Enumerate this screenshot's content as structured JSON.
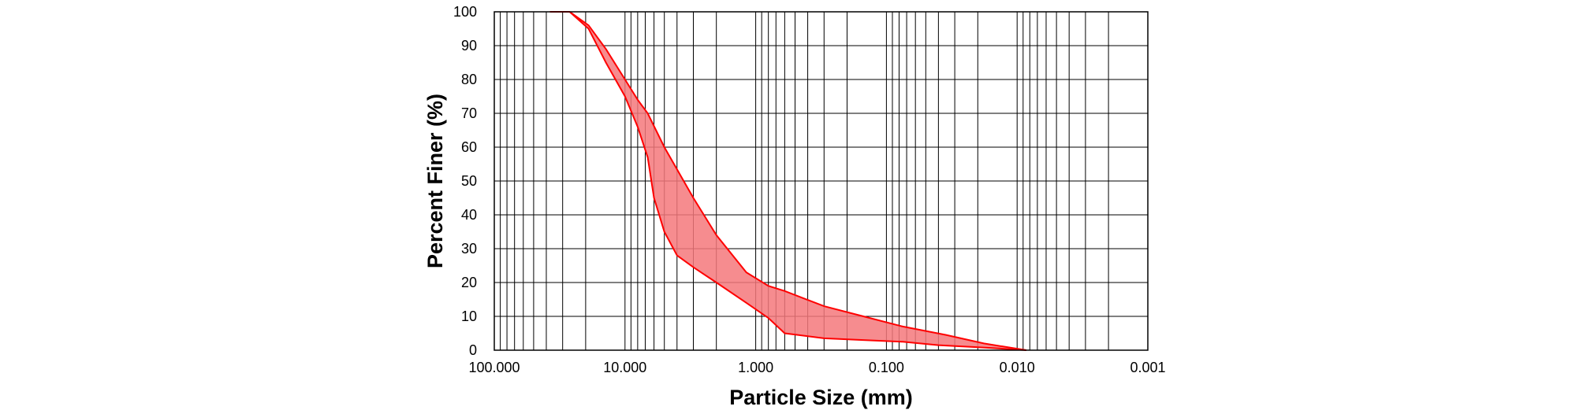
{
  "chart_data": {
    "type": "area",
    "xlabel": "Particle Size (mm)",
    "ylabel": "Percent Finer  (%)",
    "x_scale": "log",
    "x_reversed": true,
    "xlim": [
      100,
      0.001
    ],
    "ylim": [
      0,
      100
    ],
    "x_ticks": [
      {
        "value": 100,
        "label": "100.000"
      },
      {
        "value": 10,
        "label": "10.000"
      },
      {
        "value": 1,
        "label": "1.000"
      },
      {
        "value": 0.1,
        "label": "0.100"
      },
      {
        "value": 0.01,
        "label": "0.010"
      },
      {
        "value": 0.001,
        "label": "0.001"
      }
    ],
    "y_ticks": [
      0,
      10,
      20,
      30,
      40,
      50,
      60,
      70,
      80,
      90,
      100
    ],
    "grid": true,
    "band_color": "#ff0000",
    "band_fill": "#f5787b",
    "band_opacity": 0.85,
    "series": [
      {
        "x": [
          37.5,
          26.5,
          19,
          14,
          10,
          8,
          6.7,
          5,
          3,
          2,
          1.18,
          0.8,
          0.6,
          0.3,
          0.15,
          0.075,
          0.035,
          0.018,
          0.0085
        ],
        "values": [
          100,
          100,
          96,
          89,
          80,
          74,
          70,
          60,
          45,
          34,
          23,
          19,
          17.5,
          13,
          10,
          7,
          4.5,
          2,
          0
        ]
      },
      {
        "x": [
          26.5,
          19,
          14,
          10,
          8,
          6.7,
          6,
          5,
          4,
          3,
          2,
          1.18,
          0.8,
          0.6,
          0.3,
          0.15,
          0.075,
          0.04,
          0.018,
          0.0085
        ],
        "values": [
          100,
          95,
          85,
          75,
          66,
          57,
          45,
          35,
          28,
          24.5,
          20,
          14,
          9.5,
          5,
          3.5,
          3,
          2.5,
          1.5,
          0.8,
          0
        ]
      }
    ]
  }
}
